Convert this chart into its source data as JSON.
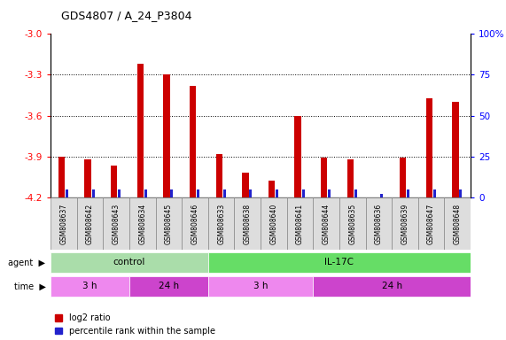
{
  "title": "GDS4807 / A_24_P3804",
  "samples": [
    "GSM808637",
    "GSM808642",
    "GSM808643",
    "GSM808634",
    "GSM808645",
    "GSM808646",
    "GSM808633",
    "GSM808638",
    "GSM808640",
    "GSM808641",
    "GSM808644",
    "GSM808635",
    "GSM808636",
    "GSM808639",
    "GSM808647",
    "GSM808648"
  ],
  "log2_ratio": [
    -3.9,
    -3.92,
    -3.97,
    -3.22,
    -3.3,
    -3.38,
    -3.88,
    -4.02,
    -4.08,
    -3.6,
    -3.91,
    -3.92,
    -4.2,
    -3.91,
    -3.47,
    -3.5
  ],
  "percentile": [
    5,
    5,
    5,
    5,
    5,
    5,
    5,
    5,
    5,
    5,
    5,
    5,
    2,
    5,
    5,
    5
  ],
  "ylim_left": [
    -4.2,
    -3.0
  ],
  "yticks_left": [
    -4.2,
    -3.9,
    -3.6,
    -3.3,
    -3.0
  ],
  "ylim_right": [
    0,
    100
  ],
  "yticks_right": [
    0,
    25,
    50,
    75,
    100
  ],
  "yticklabels_right": [
    "0",
    "25",
    "50",
    "75",
    "100%"
  ],
  "bar_color_red": "#cc0000",
  "bar_color_blue": "#2222cc",
  "agent_groups": [
    {
      "label": "control",
      "start": 0,
      "end": 6,
      "color": "#aaddaa"
    },
    {
      "label": "IL-17C",
      "start": 6,
      "end": 16,
      "color": "#66dd66"
    }
  ],
  "time_groups": [
    {
      "label": "3 h",
      "start": 0,
      "end": 3,
      "color": "#ee88ee"
    },
    {
      "label": "24 h",
      "start": 3,
      "end": 6,
      "color": "#cc44cc"
    },
    {
      "label": "3 h",
      "start": 6,
      "end": 10,
      "color": "#ee88ee"
    },
    {
      "label": "24 h",
      "start": 10,
      "end": 16,
      "color": "#cc44cc"
    }
  ],
  "legend_red_label": "log2 ratio",
  "legend_blue_label": "percentile rank within the sample",
  "background_color": "#ffffff"
}
